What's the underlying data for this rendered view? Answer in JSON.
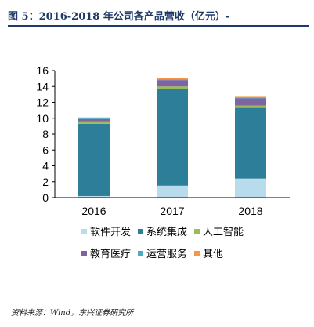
{
  "figure": {
    "title": "图 5：2016-2018 年公司各产品营收（亿元）-",
    "source": "资料来源：Wind，东兴证券研究所"
  },
  "chart_data": {
    "type": "bar",
    "stacked": true,
    "categories": [
      "2016",
      "2017",
      "2018"
    ],
    "ylim": [
      0,
      16
    ],
    "yticks": [
      0,
      2,
      4,
      6,
      8,
      10,
      12,
      14,
      16
    ],
    "grid": false,
    "legend_position": "bottom",
    "series": [
      {
        "name": "软件开发",
        "color": "#b9dcec",
        "values": [
          0.2,
          1.5,
          2.4
        ]
      },
      {
        "name": "系统集成",
        "color": "#2d7f99",
        "values": [
          9.1,
          12.2,
          8.9
        ]
      },
      {
        "name": "人工智能",
        "color": "#9bbb59",
        "values": [
          0.3,
          0.3,
          0.3
        ]
      },
      {
        "name": "教育医疗",
        "color": "#8064a2",
        "values": [
          0.3,
          0.8,
          0.9
        ]
      },
      {
        "name": "运营服务",
        "color": "#4bacc6",
        "values": [
          0.1,
          0.1,
          0.1
        ]
      },
      {
        "name": "其他",
        "color": "#f79646",
        "values": [
          0.1,
          0.2,
          0.1
        ]
      }
    ]
  }
}
